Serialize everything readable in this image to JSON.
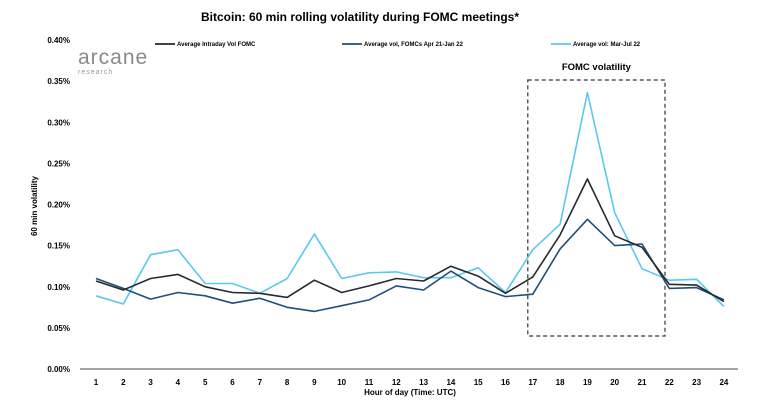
{
  "logo": {
    "main": "arcane",
    "sub": "research"
  },
  "chart_data": {
    "type": "line",
    "title": "Bitcoin: 60 min rolling volatility during FOMC meetings*",
    "xlabel": "Hour of day (Time: UTC)",
    "ylabel": "60 min volatility",
    "x": [
      1,
      2,
      3,
      4,
      5,
      6,
      7,
      8,
      9,
      10,
      11,
      12,
      13,
      14,
      15,
      16,
      17,
      18,
      19,
      20,
      21,
      22,
      23,
      24
    ],
    "ylim": [
      0,
      0.4
    ],
    "yticks": [
      "0.00%",
      "0.05%",
      "0.10%",
      "0.15%",
      "0.20%",
      "0.25%",
      "0.30%",
      "0.35%",
      "0.40%"
    ],
    "grid": false,
    "legend_position": "top",
    "series": [
      {
        "name": "Average Intraday Vol FOMC",
        "color": "#262a2e",
        "values": [
          0.107,
          0.096,
          0.11,
          0.115,
          0.1,
          0.093,
          0.092,
          0.087,
          0.108,
          0.093,
          0.101,
          0.11,
          0.107,
          0.125,
          0.113,
          0.092,
          0.112,
          0.163,
          0.231,
          0.162,
          0.148,
          0.103,
          0.102,
          0.082
        ]
      },
      {
        "name": "Average vol, FOMCs Apr 21-Jan 22",
        "color": "#1f4e79",
        "values": [
          0.11,
          0.098,
          0.085,
          0.093,
          0.089,
          0.08,
          0.086,
          0.075,
          0.07,
          0.077,
          0.084,
          0.101,
          0.096,
          0.119,
          0.099,
          0.088,
          0.091,
          0.146,
          0.182,
          0.15,
          0.152,
          0.098,
          0.099,
          0.084
        ]
      },
      {
        "name": "Average vol: Mar-Jul 22",
        "color": "#5bc8ec",
        "values": [
          0.089,
          0.079,
          0.139,
          0.145,
          0.104,
          0.104,
          0.092,
          0.11,
          0.164,
          0.11,
          0.117,
          0.118,
          0.111,
          0.111,
          0.123,
          0.093,
          0.145,
          0.176,
          0.336,
          0.19,
          0.122,
          0.108,
          0.109,
          0.076
        ]
      }
    ],
    "annotations": [
      {
        "text": "FOMC volatility",
        "x_range": [
          17,
          21
        ],
        "style": "dashed-box"
      }
    ]
  }
}
